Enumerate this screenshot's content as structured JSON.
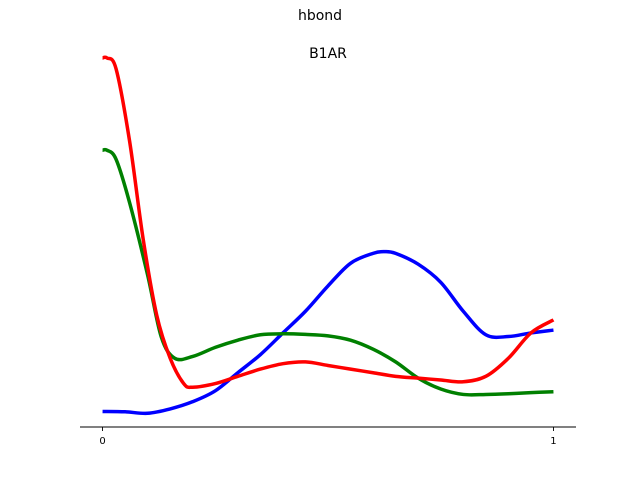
{
  "figure": {
    "suptitle": "hbond"
  },
  "chart_data": {
    "type": "line",
    "title": "B1AR",
    "xlabel": "",
    "ylabel": "",
    "xlim": [
      -0.05,
      1.05
    ],
    "ylim": [
      -0.02,
      1.0
    ],
    "x_ticks": [
      {
        "value": 0,
        "label": "0"
      },
      {
        "value": 1,
        "label": "1"
      }
    ],
    "grid": false,
    "legend": "none",
    "series": [
      {
        "color": "#0000ff",
        "x": [
          0,
          0.05,
          0.1,
          0.15,
          0.2,
          0.25,
          0.3,
          0.35,
          0.4,
          0.45,
          0.5,
          0.55,
          0.6,
          0.625,
          0.65,
          0.7,
          0.75,
          0.8,
          0.85,
          0.9,
          0.95,
          1.0
        ],
        "y": [
          0.023,
          0.022,
          0.018,
          0.03,
          0.05,
          0.08,
          0.13,
          0.18,
          0.24,
          0.3,
          0.37,
          0.4326,
          0.46,
          0.4648,
          0.46,
          0.43,
          0.38,
          0.3,
          0.235,
          0.23,
          0.24,
          0.248
        ]
      },
      {
        "color": "#008000",
        "x": [
          0,
          0.01,
          0.03,
          0.06,
          0.1,
          0.13,
          0.16,
          0.2,
          0.25,
          0.3,
          0.35,
          0.4,
          0.45,
          0.5,
          0.55,
          0.6,
          0.65,
          0.7,
          0.75,
          0.8,
          0.85,
          0.9,
          0.95,
          1.0
        ],
        "y": [
          0.745,
          0.745,
          0.72,
          0.6,
          0.4,
          0.23,
          0.17,
          0.175,
          0.2,
          0.22,
          0.235,
          0.2376,
          0.236,
          0.232,
          0.22,
          0.195,
          0.16,
          0.115,
          0.085,
          0.07,
          0.07,
          0.072,
          0.075,
          0.0776
        ]
      },
      {
        "color": "#ff0000",
        "x": [
          0,
          0.01,
          0.03,
          0.06,
          0.09,
          0.12,
          0.15,
          0.18,
          0.2,
          0.25,
          0.3,
          0.35,
          0.4,
          0.45,
          0.5,
          0.55,
          0.6,
          0.65,
          0.7,
          0.75,
          0.8,
          0.85,
          0.9,
          0.95,
          1.0
        ],
        "y": [
          1.0,
          1.0,
          0.97,
          0.77,
          0.5,
          0.29,
          0.17,
          0.1,
          0.09,
          0.1,
          0.12,
          0.14,
          0.155,
          0.16,
          0.15,
          0.14,
          0.13,
          0.12,
          0.115,
          0.11,
          0.105,
          0.12,
          0.17,
          0.24,
          0.276
        ]
      }
    ]
  }
}
